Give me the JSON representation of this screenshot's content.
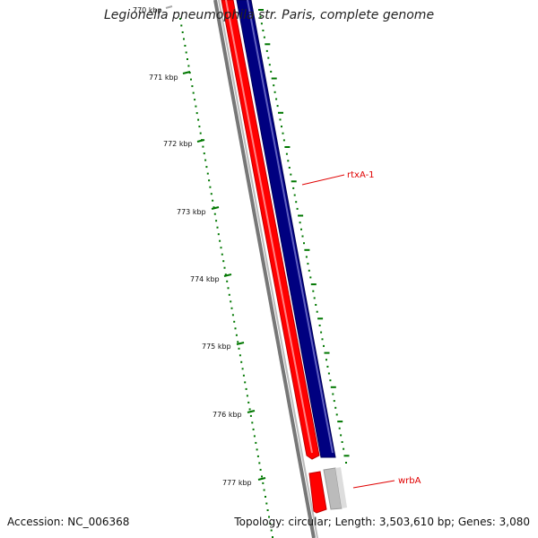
{
  "title": "Legionella pneumophila str. Paris, complete genome",
  "footer": {
    "accession": "Accession: NC_006368",
    "topology": "Topology: circular; Length: 3,503,610 bp; Genes: 3,080"
  },
  "ruler": {
    "ticks": [
      "770 kbp",
      "771 kbp",
      "772 kbp",
      "773 kbp",
      "774 kbp",
      "775 kbp",
      "776 kbp",
      "777 kbp"
    ]
  },
  "genes": [
    {
      "name": "rtxA-1"
    },
    {
      "name": "wrbA"
    }
  ],
  "colors": {
    "forward_strand": "#000080",
    "reverse_strand": "#ff0000",
    "backbone": "#888888",
    "ruler": "#007700",
    "gene_label": "#e00000",
    "grey_feature": "#bbbbbb"
  }
}
